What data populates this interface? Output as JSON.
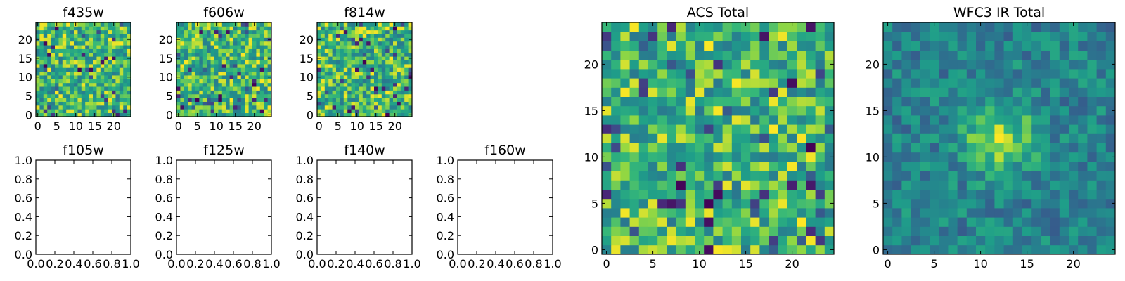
{
  "chart_data": [
    {
      "type": "heatmap",
      "title": "f435w",
      "xlim": [
        -0.5,
        24.5
      ],
      "ylim": [
        -0.5,
        24.5
      ],
      "xticks": [
        0,
        5,
        10,
        15,
        20
      ],
      "yticks": [
        0,
        5,
        10,
        15,
        20
      ],
      "xtick_labels": [
        "0",
        "5",
        "10",
        "15",
        "20"
      ],
      "ytick_labels": [
        "0",
        "5",
        "10",
        "15",
        "20"
      ],
      "grid_size": [
        25,
        25
      ],
      "colormap": "viridis",
      "pattern": "noise"
    },
    {
      "type": "heatmap",
      "title": "f606w",
      "xlim": [
        -0.5,
        24.5
      ],
      "ylim": [
        -0.5,
        24.5
      ],
      "xticks": [
        0,
        5,
        10,
        15,
        20
      ],
      "yticks": [
        0,
        5,
        10,
        15,
        20
      ],
      "xtick_labels": [
        "0",
        "5",
        "10",
        "15",
        "20"
      ],
      "ytick_labels": [
        "0",
        "5",
        "10",
        "15",
        "20"
      ],
      "grid_size": [
        25,
        25
      ],
      "colormap": "viridis",
      "pattern": "noise"
    },
    {
      "type": "heatmap",
      "title": "f814w",
      "xlim": [
        -0.5,
        24.5
      ],
      "ylim": [
        -0.5,
        24.5
      ],
      "xticks": [
        0,
        5,
        10,
        15,
        20
      ],
      "yticks": [
        0,
        5,
        10,
        15,
        20
      ],
      "xtick_labels": [
        "0",
        "5",
        "10",
        "15",
        "20"
      ],
      "ytick_labels": [
        "0",
        "5",
        "10",
        "15",
        "20"
      ],
      "grid_size": [
        25,
        25
      ],
      "colormap": "viridis",
      "pattern": "noise"
    },
    {
      "type": "scatter",
      "title": "f105w",
      "xlim": [
        0.0,
        1.0
      ],
      "ylim": [
        0.0,
        1.0
      ],
      "xticks": [
        0,
        0.2,
        0.4,
        0.6,
        0.8,
        1.0
      ],
      "yticks": [
        0,
        0.2,
        0.4,
        0.6,
        0.8,
        1.0
      ],
      "xtick_labels": [
        "0.0",
        "0.2",
        "0.4",
        "0.6",
        "0.8",
        "1.0"
      ],
      "ytick_labels": [
        "0.0",
        "0.2",
        "0.4",
        "0.6",
        "0.8",
        "1.0"
      ],
      "series": []
    },
    {
      "type": "scatter",
      "title": "f125w",
      "xlim": [
        0.0,
        1.0
      ],
      "ylim": [
        0.0,
        1.0
      ],
      "xticks": [
        0,
        0.2,
        0.4,
        0.6,
        0.8,
        1.0
      ],
      "yticks": [
        0,
        0.2,
        0.4,
        0.6,
        0.8,
        1.0
      ],
      "xtick_labels": [
        "0.0",
        "0.2",
        "0.4",
        "0.6",
        "0.8",
        "1.0"
      ],
      "ytick_labels": [
        "0.0",
        "0.2",
        "0.4",
        "0.6",
        "0.8",
        "1.0"
      ],
      "series": []
    },
    {
      "type": "scatter",
      "title": "f140w",
      "xlim": [
        0.0,
        1.0
      ],
      "ylim": [
        0.0,
        1.0
      ],
      "xticks": [
        0,
        0.2,
        0.4,
        0.6,
        0.8,
        1.0
      ],
      "yticks": [
        0,
        0.2,
        0.4,
        0.6,
        0.8,
        1.0
      ],
      "xtick_labels": [
        "0.0",
        "0.2",
        "0.4",
        "0.6",
        "0.8",
        "1.0"
      ],
      "ytick_labels": [
        "0.0",
        "0.2",
        "0.4",
        "0.6",
        "0.8",
        "1.0"
      ],
      "series": []
    },
    {
      "type": "scatter",
      "title": "f160w",
      "xlim": [
        0.0,
        1.0
      ],
      "ylim": [
        0.0,
        1.0
      ],
      "xticks": [
        0,
        0.2,
        0.4,
        0.6,
        0.8,
        1.0
      ],
      "yticks": [
        0,
        0.2,
        0.4,
        0.6,
        0.8,
        1.0
      ],
      "xtick_labels": [
        "0.0",
        "0.2",
        "0.4",
        "0.6",
        "0.8",
        "1.0"
      ],
      "ytick_labels": [
        "0.0",
        "0.2",
        "0.4",
        "0.6",
        "0.8",
        "1.0"
      ],
      "series": []
    },
    {
      "type": "heatmap",
      "title": "ACS Total",
      "xlim": [
        -0.5,
        24.5
      ],
      "ylim": [
        -0.5,
        24.5
      ],
      "xticks": [
        0,
        5,
        10,
        15,
        20
      ],
      "yticks": [
        0,
        5,
        10,
        15,
        20
      ],
      "xtick_labels": [
        "0",
        "5",
        "10",
        "15",
        "20"
      ],
      "ytick_labels": [
        "0",
        "5",
        "10",
        "15",
        "20"
      ],
      "grid_size": [
        25,
        25
      ],
      "colormap": "viridis",
      "pattern": "noise"
    },
    {
      "type": "heatmap",
      "title": "WFC3 IR Total",
      "xlim": [
        -0.5,
        24.5
      ],
      "ylim": [
        -0.5,
        24.5
      ],
      "xticks": [
        0,
        5,
        10,
        15,
        20
      ],
      "yticks": [
        0,
        5,
        10,
        15,
        20
      ],
      "xtick_labels": [
        "0",
        "5",
        "10",
        "15",
        "20"
      ],
      "ytick_labels": [
        "0",
        "5",
        "10",
        "15",
        "20"
      ],
      "grid_size": [
        25,
        25
      ],
      "colormap": "viridis",
      "pattern": "blob",
      "peak_center": [
        12,
        12
      ]
    }
  ]
}
